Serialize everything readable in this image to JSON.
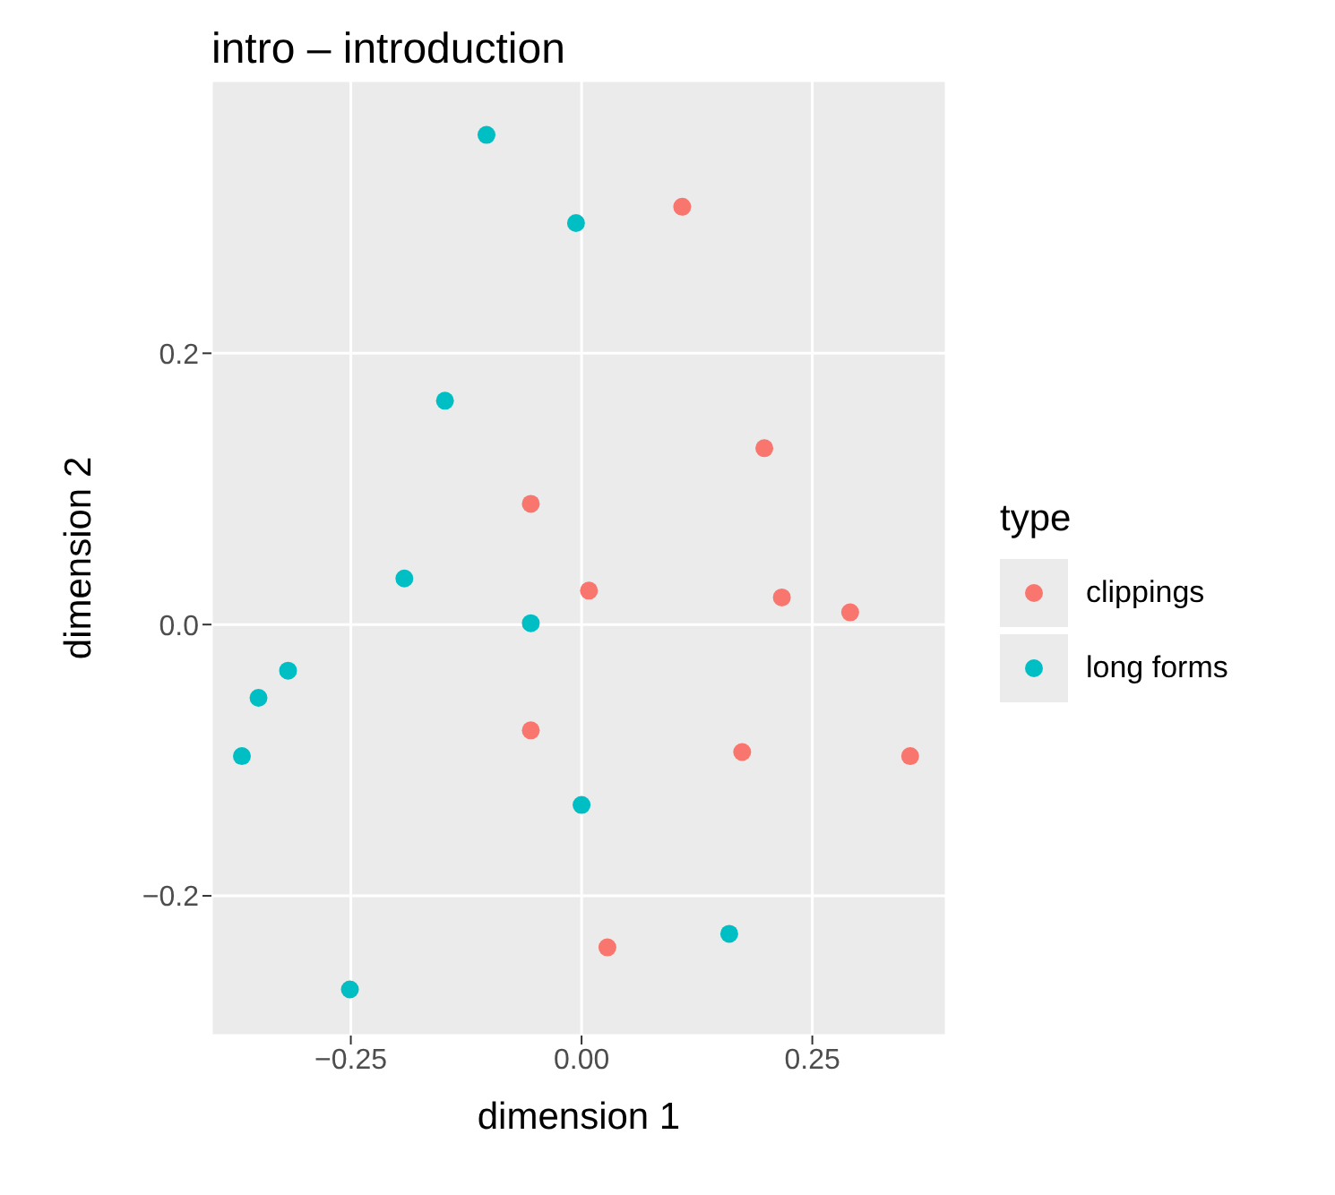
{
  "chart_data": {
    "type": "scatter",
    "title": "intro – introduction",
    "xlabel": "dimension 1",
    "ylabel": "dimension 2",
    "legend_title": "type",
    "legend": "right",
    "grid": true,
    "marker": "circle",
    "xlim": [
      -0.401,
      0.395
    ],
    "ylim": [
      -0.303,
      0.401
    ],
    "xticks": [
      {
        "value": -0.25,
        "label": "−0.25"
      },
      {
        "value": 0,
        "label": "0.00"
      },
      {
        "value": 0.25,
        "label": "0.25"
      }
    ],
    "yticks": [
      {
        "value": -0.2,
        "label": "−0.2"
      },
      {
        "value": 0,
        "label": "0.0"
      },
      {
        "value": 0.2,
        "label": "0.2"
      }
    ],
    "series": [
      {
        "name": "clippings",
        "color": "#f8766d",
        "x": [
          0.109,
          0.198,
          -0.055,
          0.008,
          0.217,
          0.291,
          -0.055,
          0.174,
          0.356,
          0.028
        ],
        "values": [
          0.308,
          0.13,
          0.089,
          0.025,
          0.02,
          0.009,
          -0.078,
          -0.094,
          -0.097,
          -0.238
        ]
      },
      {
        "name": "long forms",
        "color": "#00bfc4",
        "x": [
          -0.103,
          -0.006,
          -0.148,
          -0.192,
          -0.055,
          -0.318,
          -0.35,
          -0.368,
          0.0,
          0.16,
          -0.251
        ],
        "values": [
          0.361,
          0.296,
          0.165,
          0.034,
          0.001,
          -0.034,
          -0.054,
          -0.097,
          -0.133,
          -0.228,
          -0.269
        ]
      }
    ]
  }
}
